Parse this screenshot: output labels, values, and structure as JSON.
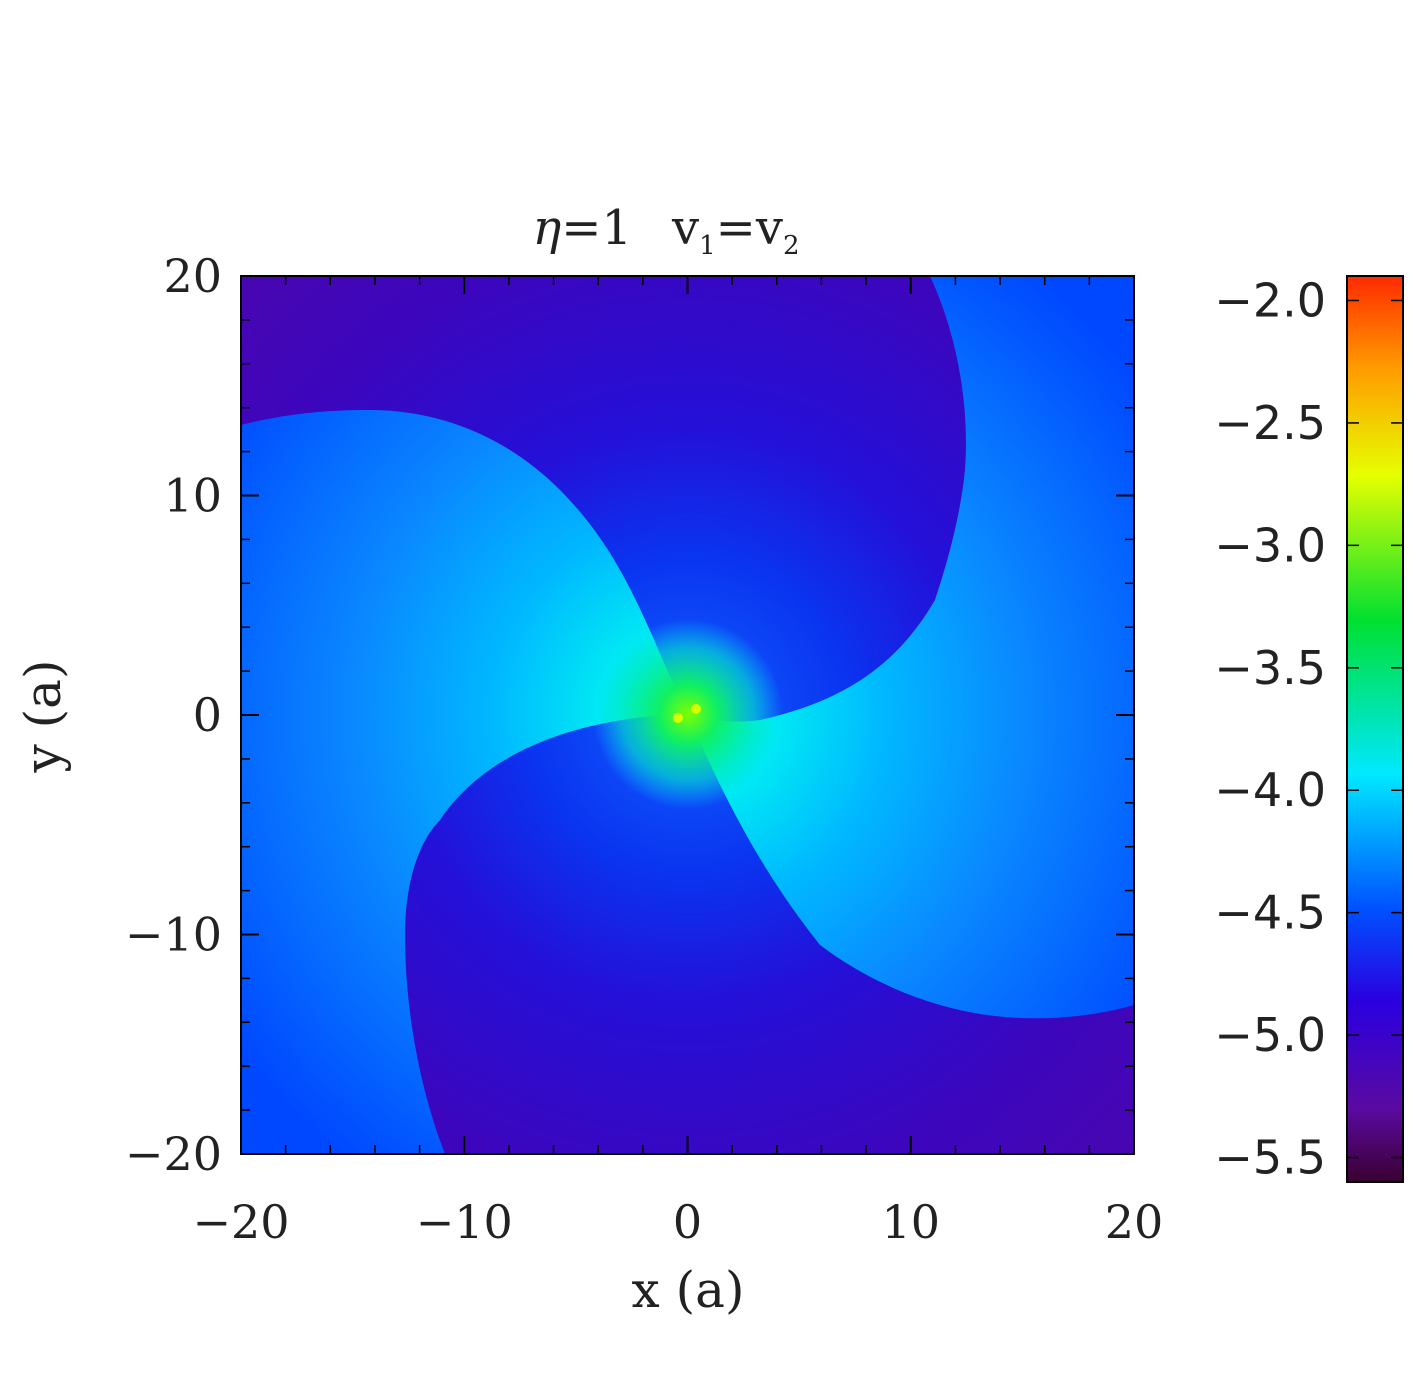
{
  "chart_data": {
    "type": "heatmap",
    "title": {
      "eta_symbol": "η",
      "eta_eq": "=1",
      "v1": "v",
      "v1_sub": "1",
      "eq": "=",
      "v2": "v",
      "v2_sub": "2"
    },
    "xlabel": "x (a)",
    "ylabel": "y (a)",
    "xlim": [
      -20,
      20
    ],
    "ylim": [
      -20,
      20
    ],
    "x_ticks": [
      -20,
      -10,
      0,
      10,
      20
    ],
    "x_tick_labels": [
      "−20",
      "−10",
      "0",
      "10",
      "20"
    ],
    "y_ticks": [
      -20,
      -10,
      0,
      10,
      20
    ],
    "y_tick_labels": [
      "−20",
      "−10",
      "0",
      "10",
      "20"
    ],
    "colorbar": {
      "range": [
        -5.6,
        -1.9
      ],
      "ticks": [
        -2.0,
        -2.5,
        -3.0,
        -3.5,
        -4.0,
        -4.5,
        -5.0,
        -5.5
      ],
      "tick_labels": [
        "−2.0",
        "−2.5",
        "−3.0",
        "−3.5",
        "−4.0",
        "−4.5",
        "−5.0",
        "−5.5"
      ],
      "colormap": [
        "#3a0030",
        "#5a0aa0",
        "#2a00e0",
        "#0050ff",
        "#00e8ff",
        "#00e030",
        "#e6ff00",
        "#ff9a00",
        "#ff2a00"
      ]
    },
    "field_description": {
      "background_min": -5.3,
      "arm_level_outer": -4.7,
      "peak_center": -3.3,
      "center_stars": [
        [
          -0.3,
          -0.2
        ],
        [
          0.5,
          0.4
        ]
      ]
    }
  }
}
